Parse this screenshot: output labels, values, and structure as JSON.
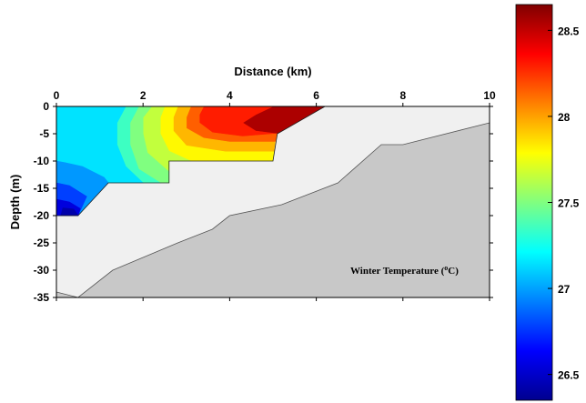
{
  "chart_data": {
    "type": "heatmap",
    "subtype": "filled-contour cross-section",
    "xlabel": "Distance (km)",
    "ylabel": "Depth (m)",
    "xlim": [
      0,
      10
    ],
    "ylim": [
      -35,
      0
    ],
    "x_ticks": [
      0,
      2,
      4,
      6,
      8,
      10
    ],
    "y_ticks": [
      0,
      -5,
      -10,
      -15,
      -20,
      -25,
      -30,
      -35
    ],
    "x_axis_position": "top",
    "grid": false,
    "annotation": {
      "text_before": "Winter Temperature (",
      "superscript": "o",
      "text_after": "C)"
    },
    "colorbar": {
      "ticks": [
        26.5,
        27,
        27.5,
        28,
        28.5
      ],
      "min": 26.35,
      "max": 28.65,
      "colormap": [
        "#00008f",
        "#0000ff",
        "#0080ff",
        "#00ffff",
        "#80ff80",
        "#ffff00",
        "#ff8000",
        "#ff0000",
        "#800000"
      ]
    },
    "bathymetry": [
      [
        0,
        -34
      ],
      [
        0.5,
        -35
      ],
      [
        1.3,
        -30
      ],
      [
        2.8,
        -25
      ],
      [
        3.6,
        -22.5
      ],
      [
        4,
        -20
      ],
      [
        5.2,
        -18
      ],
      [
        6.5,
        -14
      ],
      [
        7.5,
        -7
      ],
      [
        8,
        -7
      ],
      [
        10,
        -3
      ]
    ],
    "data_region": [
      [
        0,
        0
      ],
      [
        6.2,
        0
      ],
      [
        5.1,
        -5
      ],
      [
        5,
        -10
      ],
      [
        2.6,
        -10
      ],
      [
        2.6,
        -14
      ],
      [
        1.2,
        -14
      ],
      [
        0.5,
        -20
      ],
      [
        0,
        -20
      ]
    ],
    "contour_bands": [
      {
        "value": 28.55,
        "polygon": [
          [
            5,
            0
          ],
          [
            6.2,
            0
          ],
          [
            5.1,
            -5
          ],
          [
            4.6,
            -4.5
          ],
          [
            4.3,
            -3
          ],
          [
            4.6,
            -1.5
          ]
        ]
      },
      {
        "value": 28.3,
        "polygon": [
          [
            3.4,
            0
          ],
          [
            5,
            0
          ],
          [
            4.6,
            -1.5
          ],
          [
            4.3,
            -3
          ],
          [
            4.6,
            -4.5
          ],
          [
            5.1,
            -5
          ],
          [
            4.3,
            -5.5
          ],
          [
            3.6,
            -4.8
          ],
          [
            3.3,
            -3
          ],
          [
            3.3,
            -1.5
          ]
        ]
      },
      {
        "value": 28.15,
        "polygon": [
          [
            3.1,
            0
          ],
          [
            3.4,
            0
          ],
          [
            3.3,
            -1.5
          ],
          [
            3.3,
            -3
          ],
          [
            3.6,
            -4.8
          ],
          [
            4.3,
            -5.5
          ],
          [
            5.1,
            -5
          ],
          [
            5.05,
            -6.5
          ],
          [
            4,
            -6.5
          ],
          [
            3.4,
            -5.8
          ],
          [
            3,
            -4
          ],
          [
            3,
            -2
          ]
        ]
      },
      {
        "value": 27.95,
        "polygon": [
          [
            2.8,
            0
          ],
          [
            3.1,
            0
          ],
          [
            3,
            -2
          ],
          [
            3,
            -4
          ],
          [
            3.4,
            -5.8
          ],
          [
            4,
            -6.5
          ],
          [
            5.05,
            -6.5
          ],
          [
            5.02,
            -8.3
          ],
          [
            3.9,
            -8.3
          ],
          [
            3,
            -7.2
          ],
          [
            2.7,
            -4.5
          ],
          [
            2.7,
            -2
          ]
        ]
      },
      {
        "value": 27.8,
        "polygon": [
          [
            2.5,
            0
          ],
          [
            2.8,
            0
          ],
          [
            2.7,
            -2
          ],
          [
            2.7,
            -4.5
          ],
          [
            3,
            -7.2
          ],
          [
            3.9,
            -8.3
          ],
          [
            5.02,
            -8.3
          ],
          [
            5,
            -10
          ],
          [
            3.1,
            -10
          ],
          [
            2.6,
            -8.2
          ],
          [
            2.4,
            -5
          ],
          [
            2.4,
            -2
          ]
        ]
      },
      {
        "value": 27.65,
        "polygon": [
          [
            2.2,
            0
          ],
          [
            2.5,
            0
          ],
          [
            2.4,
            -2
          ],
          [
            2.4,
            -5
          ],
          [
            2.6,
            -8.2
          ],
          [
            3.1,
            -10
          ],
          [
            2.6,
            -10
          ],
          [
            2.6,
            -12
          ],
          [
            2.1,
            -8.5
          ],
          [
            2,
            -5
          ],
          [
            2,
            -2
          ]
        ]
      },
      {
        "value": 27.5,
        "polygon": [
          [
            1.9,
            0
          ],
          [
            2.2,
            0
          ],
          [
            2,
            -2
          ],
          [
            2,
            -5
          ],
          [
            2.1,
            -8.5
          ],
          [
            2.6,
            -12
          ],
          [
            2.6,
            -14
          ],
          [
            2.4,
            -14
          ],
          [
            1.9,
            -11.5
          ],
          [
            1.7,
            -7
          ],
          [
            1.7,
            -3
          ]
        ]
      },
      {
        "value": 27.35,
        "polygon": [
          [
            1.6,
            0
          ],
          [
            1.9,
            0
          ],
          [
            1.7,
            -3
          ],
          [
            1.7,
            -7
          ],
          [
            1.9,
            -11.5
          ],
          [
            2.4,
            -14
          ],
          [
            2,
            -14
          ],
          [
            1.6,
            -11
          ],
          [
            1.4,
            -7
          ],
          [
            1.4,
            -3
          ]
        ]
      },
      {
        "value": 27.15,
        "polygon": [
          [
            0,
            0
          ],
          [
            1.6,
            0
          ],
          [
            1.4,
            -3
          ],
          [
            1.4,
            -7
          ],
          [
            1.6,
            -11
          ],
          [
            2,
            -14
          ],
          [
            1.2,
            -14
          ],
          [
            0,
            -14
          ]
        ]
      },
      {
        "value": 26.98,
        "polygon": [
          [
            0,
            -10
          ],
          [
            0.2,
            -10.3
          ],
          [
            0.6,
            -11
          ],
          [
            1.1,
            -13
          ],
          [
            1.2,
            -14
          ],
          [
            0.5,
            -20
          ],
          [
            0,
            -20
          ]
        ]
      },
      {
        "value": 26.78,
        "polygon": [
          [
            0,
            -14
          ],
          [
            0.3,
            -14.5
          ],
          [
            0.7,
            -16.5
          ],
          [
            0.5,
            -20
          ],
          [
            0,
            -20
          ]
        ]
      },
      {
        "value": 26.55,
        "polygon": [
          [
            0,
            -17
          ],
          [
            0.3,
            -17.5
          ],
          [
            0.55,
            -18.7
          ],
          [
            0.5,
            -20
          ],
          [
            0,
            -20
          ]
        ]
      },
      {
        "value": 26.42,
        "polygon": [
          [
            0.15,
            -18.6
          ],
          [
            0.4,
            -18.8
          ],
          [
            0.5,
            -20
          ],
          [
            0.1,
            -20
          ]
        ]
      }
    ]
  }
}
